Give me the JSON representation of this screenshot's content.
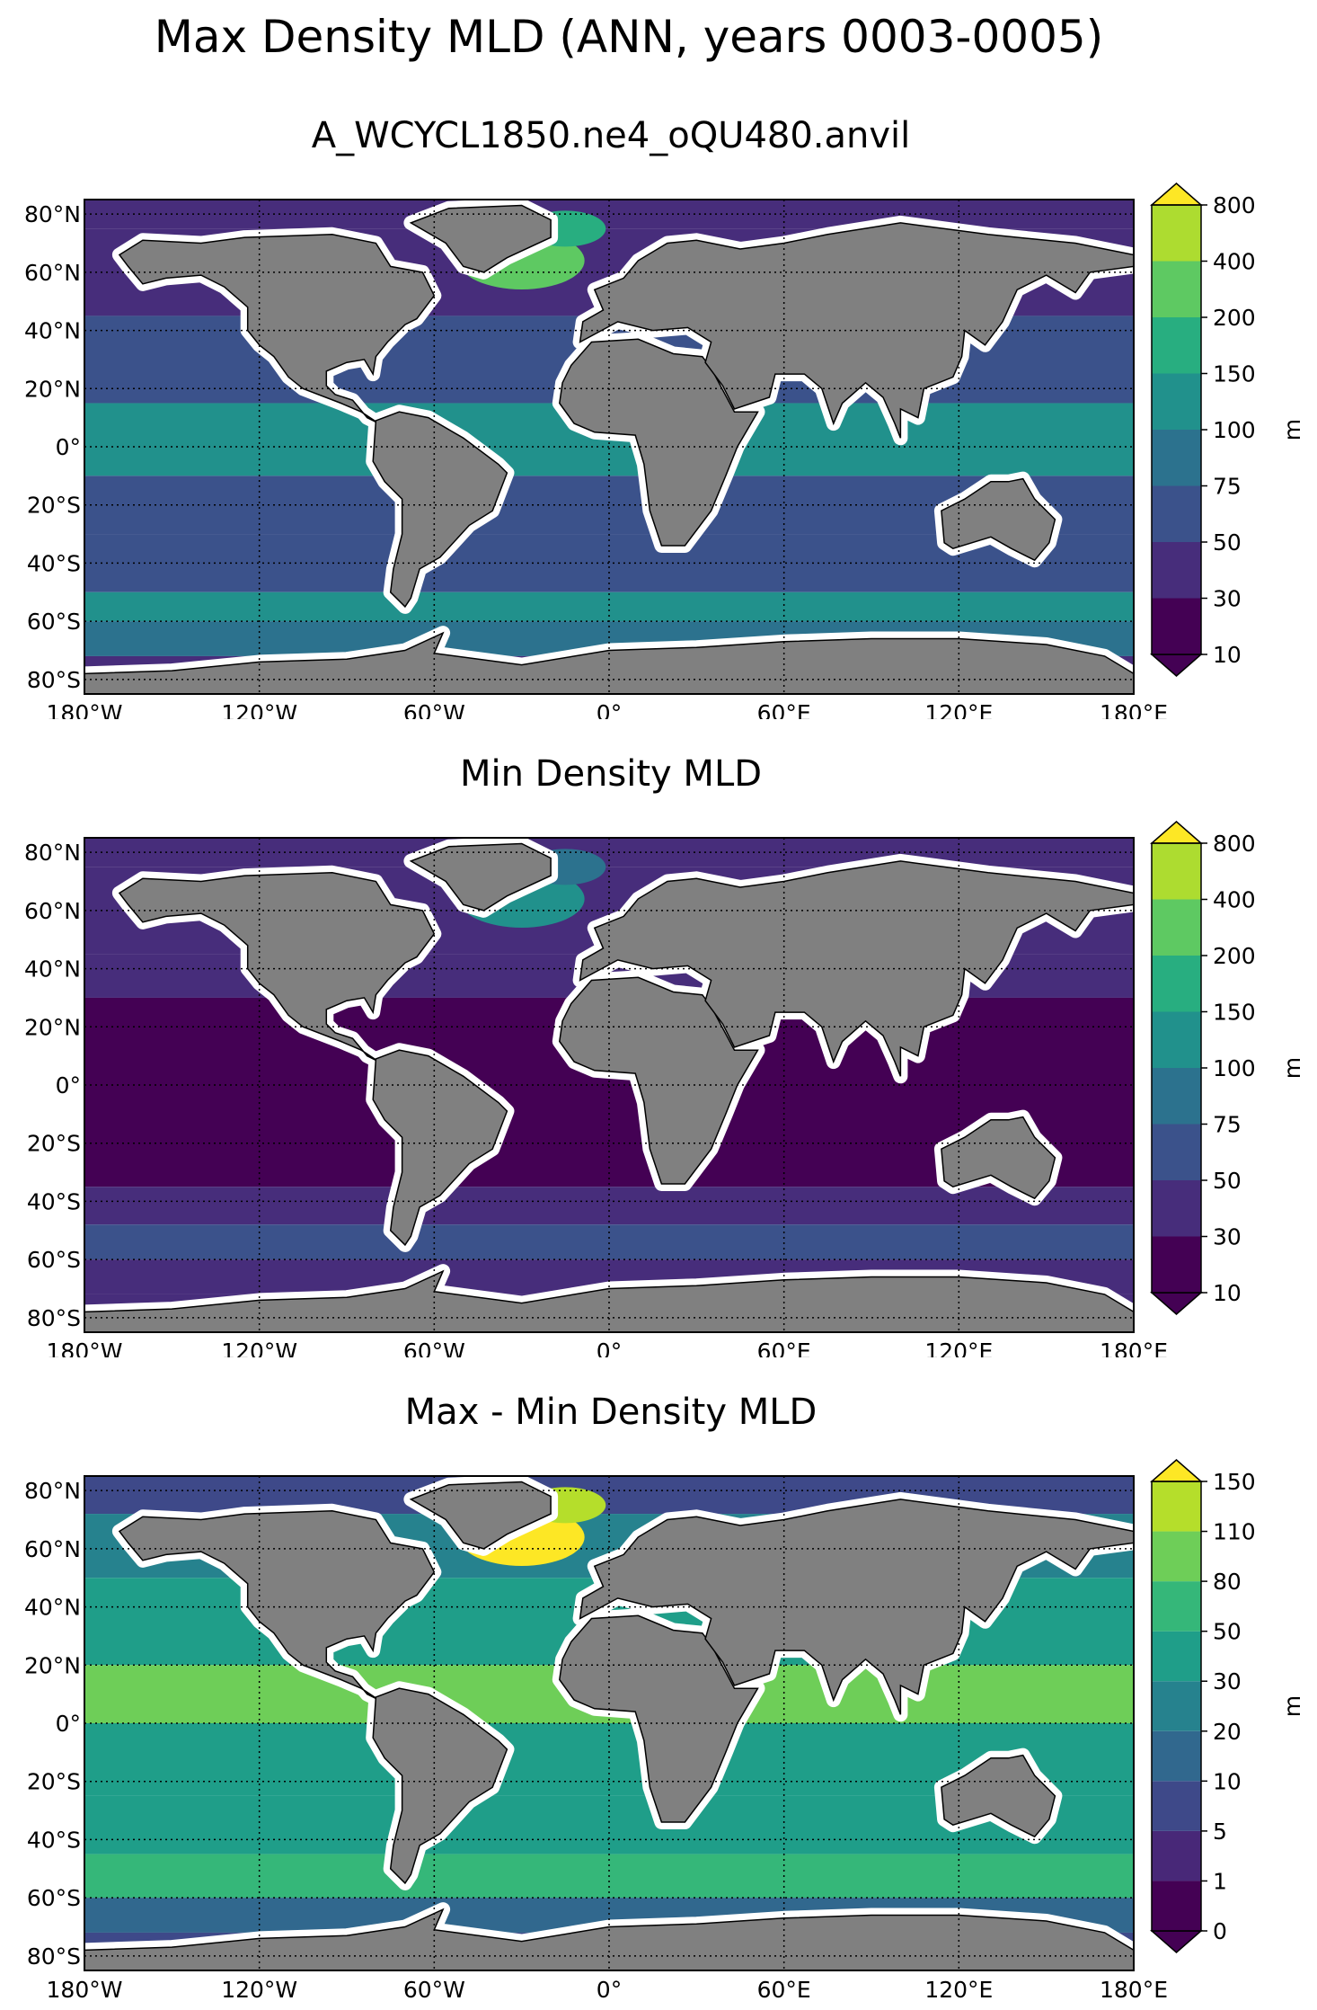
{
  "suptitle": "Max Density MLD (ANN, years 0003-0005)",
  "lat_labels": [
    "80°N",
    "60°N",
    "40°N",
    "20°N",
    "0°",
    "20°S",
    "40°S",
    "60°S",
    "80°S"
  ],
  "lon_labels": [
    "180°W",
    "120°W",
    "60°W",
    "0°",
    "60°E",
    "120°E",
    "180°E"
  ],
  "panels": [
    {
      "title": "A_WCYCL1850.ne4_oQU480.anvil",
      "colorbar_ticks": [
        "10",
        "30",
        "50",
        "75",
        "100",
        "150",
        "200",
        "400",
        "800"
      ],
      "colorbar_unit": "m",
      "colors": [
        "#440154",
        "#472d7b",
        "#3b528b",
        "#2c728e",
        "#21918c",
        "#28ae80",
        "#5ec962",
        "#addc30",
        "#fde725"
      ]
    },
    {
      "title": "Min Density MLD",
      "colorbar_ticks": [
        "10",
        "30",
        "50",
        "75",
        "100",
        "150",
        "200",
        "400",
        "800"
      ],
      "colorbar_unit": "m",
      "colors": [
        "#440154",
        "#472d7b",
        "#3b528b",
        "#2c728e",
        "#21918c",
        "#28ae80",
        "#5ec962",
        "#addc30",
        "#fde725"
      ]
    },
    {
      "title": "Max - Min Density MLD",
      "colorbar_ticks": [
        "0",
        "1",
        "5",
        "10",
        "20",
        "30",
        "50",
        "80",
        "110",
        "150"
      ],
      "colorbar_unit": "m",
      "colors": [
        "#440154",
        "#482878",
        "#3e4989",
        "#31688e",
        "#26828e",
        "#1f9e89",
        "#35b779",
        "#6ece58",
        "#b5de2b",
        "#fde725"
      ]
    }
  ]
}
